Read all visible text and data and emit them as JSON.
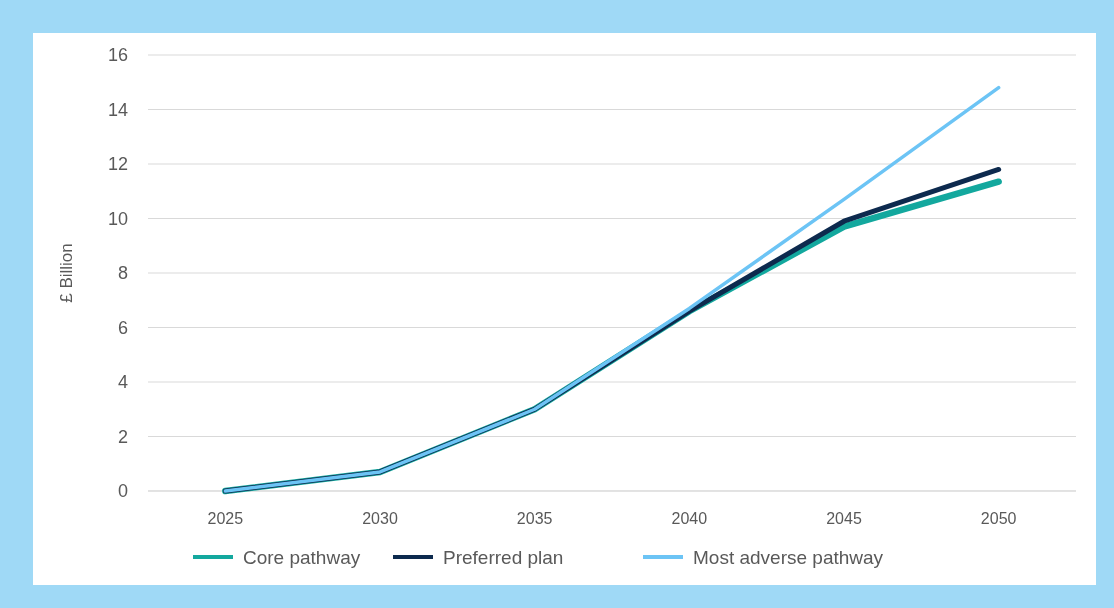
{
  "chart_data": {
    "type": "line",
    "ylabel": "£ Billion",
    "categories": [
      "2025",
      "2030",
      "2035",
      "2040",
      "2045",
      "2050"
    ],
    "series": [
      {
        "name": "Core pathway",
        "color": "#13a89e",
        "values": [
          0,
          0.7,
          3,
          6.6,
          9.7,
          11.35
        ]
      },
      {
        "name": "Preferred plan",
        "color": "#0d2a4e",
        "values": [
          0,
          0.7,
          3,
          6.6,
          9.9,
          11.8
        ]
      },
      {
        "name": "Most adverse pathway",
        "color": "#6cc4f5",
        "values": [
          0,
          0.7,
          3,
          6.7,
          10.7,
          14.8
        ]
      }
    ],
    "ylim": [
      0,
      16
    ],
    "yticks": [
      0,
      2,
      4,
      6,
      8,
      10,
      12,
      14,
      16
    ],
    "grid": "y",
    "legend": "bottom",
    "marker": "none",
    "line_style": "solid"
  }
}
